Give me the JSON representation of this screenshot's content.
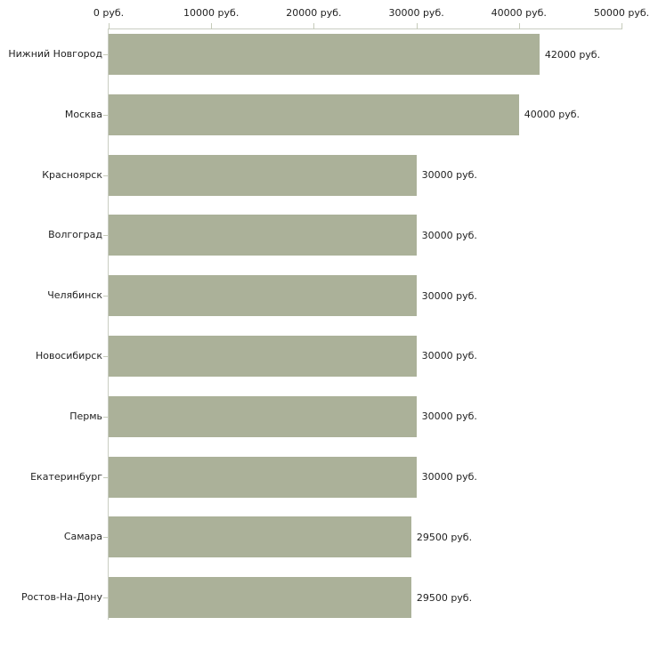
{
  "chart_data": {
    "type": "bar",
    "orientation": "horizontal",
    "title": "",
    "xlabel": "",
    "ylabel": "",
    "categories": [
      "Нижний Новгород",
      "Москва",
      "Красноярск",
      "Волгоград",
      "Челябинск",
      "Новосибирск",
      "Пермь",
      "Екатеринбург",
      "Самара",
      "Ростов-На-Дону"
    ],
    "values": [
      42000,
      40000,
      30000,
      30000,
      30000,
      30000,
      30000,
      30000,
      29500,
      29500
    ],
    "value_labels": [
      "42000 руб.",
      "40000 руб.",
      "30000 руб.",
      "30000 руб.",
      "30000 руб.",
      "30000 руб.",
      "30000 руб.",
      "30000 руб.",
      "29500 руб.",
      "29500 руб."
    ],
    "xlim": [
      0,
      50000
    ],
    "x_ticks": [
      0,
      10000,
      20000,
      30000,
      40000,
      50000
    ],
    "x_tick_labels": [
      "0 руб.",
      "10000 руб.",
      "20000 руб.",
      "30000 руб.",
      "40000 руб.",
      "50000 руб."
    ],
    "grid": false,
    "legend": null,
    "axis_position": "top-left",
    "colors": {
      "bar": "#abb199",
      "axis": "#c9cdc2",
      "tick": "#c6cbba",
      "text": "#1f1f1f",
      "background": "#ffffff"
    }
  }
}
